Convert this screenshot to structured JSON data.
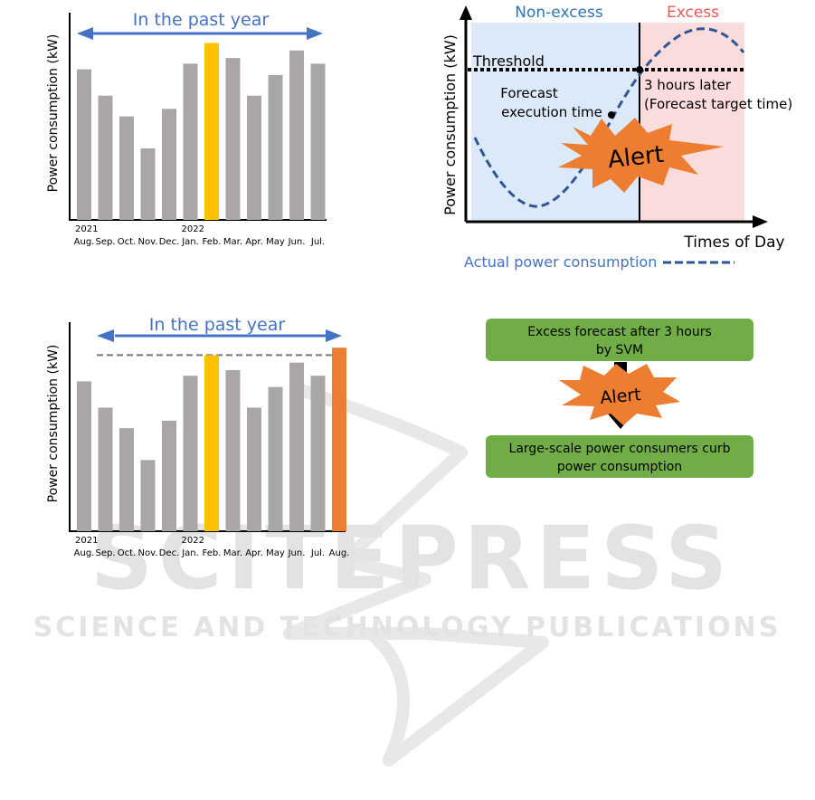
{
  "colors": {
    "bar_gray": "#aaa6a6",
    "highlight_yellow": "#ffc000",
    "highlight_orange": "#ed7d31",
    "arrow_blue": "#4472c4",
    "text_blue": "#4472c4",
    "non_excess_bg": "#dce9f8",
    "excess_bg": "#fbdcdc",
    "non_excess_text": "#2e75b6",
    "excess_text": "#ee5555",
    "curve_blue": "#2f5597",
    "alert_orange": "#ed7d31",
    "box_green": "#70ad47",
    "watermark": "#e3e3e3"
  },
  "chart_data": [
    {
      "type": "bar",
      "ylabel": "Power consumption (kW)",
      "span_label": "In the past year",
      "year_labels": [
        {
          "text": "2021",
          "index": 0
        },
        {
          "text": "2022",
          "index": 5
        }
      ],
      "categories": [
        "Aug.",
        "Sep.",
        "Oct.",
        "Nov.",
        "Dec.",
        "Jan.",
        "Feb.",
        "Mar.",
        "Apr.",
        "May",
        "Jun.",
        "Jul."
      ],
      "values": [
        80,
        66,
        55,
        38,
        59,
        83,
        94,
        86,
        66,
        77,
        90,
        83
      ],
      "highlight": {
        "Feb.": "highlight_yellow"
      },
      "ylim": [
        0,
        100
      ]
    },
    {
      "type": "bar",
      "ylabel": "Power consumption (kW)",
      "span_label": "In the past year",
      "year_labels": [
        {
          "text": "2021",
          "index": 0
        },
        {
          "text": "2022",
          "index": 5
        }
      ],
      "categories": [
        "Aug.",
        "Sep.",
        "Oct.",
        "Nov.",
        "Dec.",
        "Jan.",
        "Feb.",
        "Mar.",
        "Apr.",
        "May",
        "Jun.",
        "Jul.",
        "Aug."
      ],
      "values": [
        80,
        66,
        55,
        38,
        59,
        83,
        94,
        86,
        66,
        77,
        90,
        83,
        98
      ],
      "highlight": {
        "Feb.": "highlight_yellow",
        "12": "highlight_orange"
      },
      "reference_line": 94,
      "ylim": [
        0,
        100
      ]
    },
    {
      "type": "line",
      "ylabel": "Power consumption (kW)",
      "xlabel": "Times of Day",
      "regions": [
        "Non-excess",
        "Excess"
      ],
      "threshold_label": "Threshold",
      "forecast_label": [
        "Forecast",
        "execution time"
      ],
      "target_label": [
        "3 hours later",
        "(Forecast target time)"
      ],
      "alert_label": "Alert",
      "legend": "Actual power consumption"
    }
  ],
  "flow": {
    "box1": [
      "Excess forecast after 3 hours",
      "by SVM"
    ],
    "alert": "Alert",
    "box2": [
      "Large-scale power consumers curb",
      "power consumption"
    ]
  },
  "watermark": {
    "big": "SCITEPRESS",
    "small": "SCIENCE AND TECHNOLOGY PUBLICATIONS"
  }
}
